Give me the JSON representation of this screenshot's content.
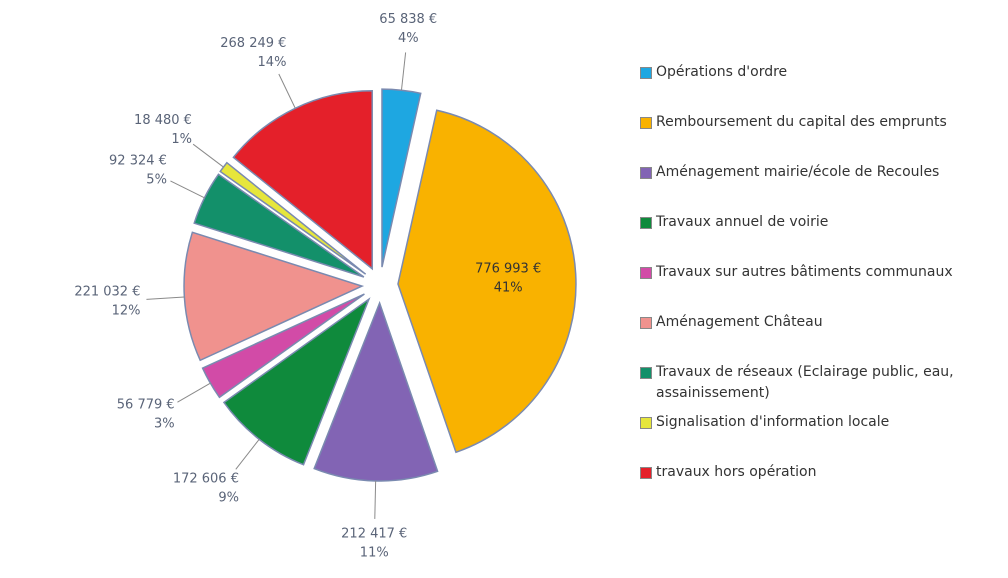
{
  "chart_data": {
    "type": "pie",
    "categories": [
      "Opérations d'ordre",
      "Remboursement du capital des emprunts",
      "Aménagement mairie/école de Recoules",
      "Travaux annuel de voirie",
      "Travaux sur autres bâtiments communaux",
      "Aménagement Château",
      "Travaux de réseaux (Eclairage public, eau, assainissement)",
      "Signalisation d'information locale",
      "travaux hors opération"
    ],
    "values": [
      65838,
      776993,
      212417,
      172606,
      56779,
      221032,
      92324,
      18480,
      268249
    ],
    "value_labels": [
      "65 838 €",
      "776 993 €",
      "212 417 €",
      "172 606 €",
      "56 779 €",
      "221 032 €",
      "92 324 €",
      "18 480 €",
      "268 249 €"
    ],
    "percents": [
      4,
      41,
      11,
      9,
      3,
      12,
      5,
      1,
      14
    ],
    "percent_labels": [
      "4%",
      "41%",
      "11%",
      "9%",
      "3%",
      "12%",
      "5%",
      "1%",
      "14%"
    ],
    "colors": [
      "#1ea7e1",
      "#f9b200",
      "#8264b4",
      "#0f8a3c",
      "#d24ba7",
      "#f0928e",
      "#13906a",
      "#e6e63c",
      "#e4202a"
    ],
    "legend": "right"
  }
}
